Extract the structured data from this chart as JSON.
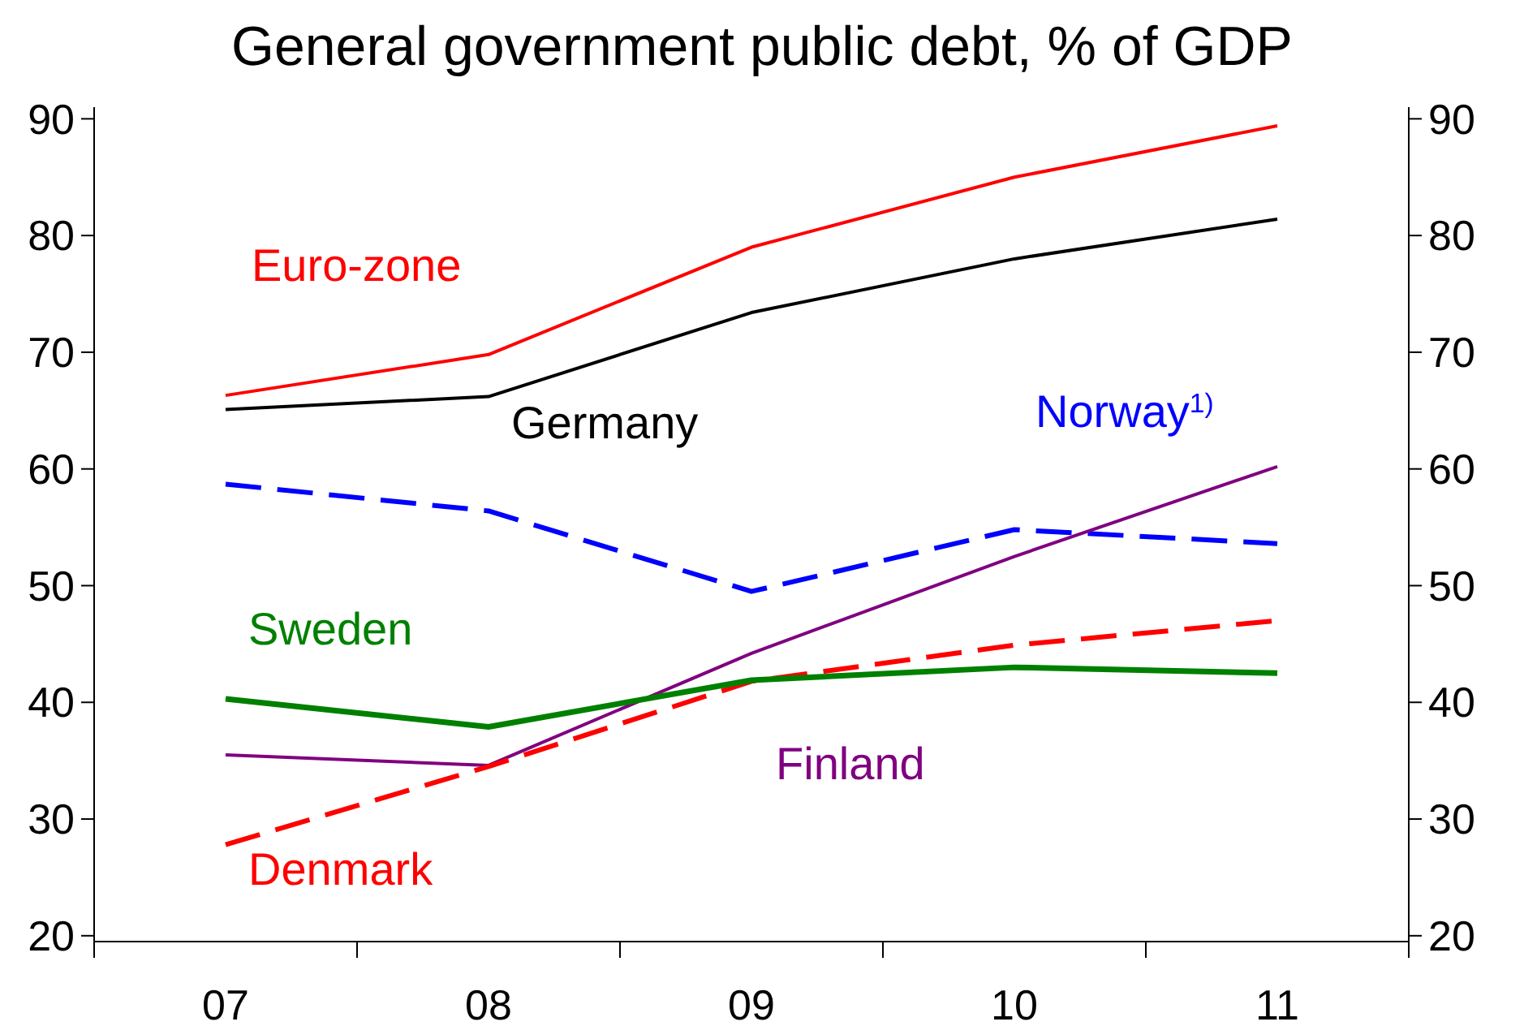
{
  "chart_data": {
    "type": "line",
    "title": "General government public debt, % of GDP",
    "categories": [
      "07",
      "08",
      "09",
      "10",
      "11"
    ],
    "ylim": [
      19.5,
      91
    ],
    "yticks": [
      20,
      30,
      40,
      50,
      60,
      70,
      80,
      90
    ],
    "y2lim": [
      19.5,
      91
    ],
    "y2ticks": [
      20,
      30,
      40,
      50,
      60,
      70,
      80,
      90
    ],
    "grid": false,
    "marker": "none",
    "series": [
      {
        "name": "Euro-zone",
        "color": "#ff0000",
        "line_style": "solid",
        "values": [
          66.3,
          69.8,
          79,
          85,
          89.4
        ]
      },
      {
        "name": "Germany",
        "color": "#000000",
        "line_style": "solid",
        "values": [
          65.1,
          66.2,
          73.4,
          78,
          81.4
        ]
      },
      {
        "name": "Norway$^{1)}$",
        "color": "#0000ff",
        "line_style": "dashed",
        "values": [
          58.7,
          56.4,
          49.5,
          54.8,
          53.6
        ]
      },
      {
        "name": "Finland",
        "color": "#800080",
        "line_style": "solid",
        "values": [
          35.5,
          34.6,
          44.2,
          52.5,
          60.2
        ]
      },
      {
        "name": "Denmark",
        "color": "#ff0000",
        "line_style": "dashed",
        "values": [
          27.8,
          34.5,
          41.8,
          44.9,
          47
        ]
      },
      {
        "name": "Sweden",
        "color": "#008000",
        "line_style": "solid",
        "values": [
          40.3,
          37.9,
          41.9,
          43,
          42.5
        ]
      }
    ]
  }
}
